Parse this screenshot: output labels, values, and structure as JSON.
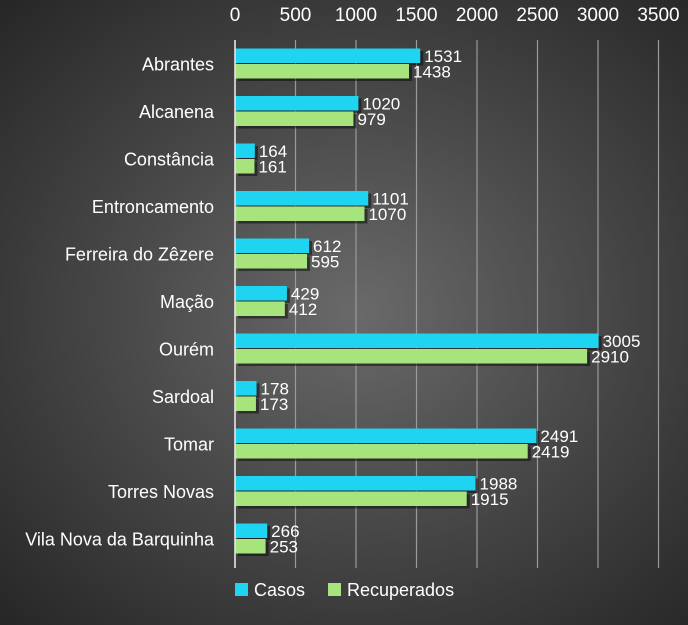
{
  "chart_data": {
    "type": "bar",
    "orientation": "horizontal",
    "categories": [
      "Abrantes",
      "Alcanena",
      "Constância",
      "Entroncamento",
      "Ferreira do Zêzere",
      "Mação",
      "Ourém",
      "Sardoal",
      "Tomar",
      "Torres Novas",
      "Vila Nova da Barquinha"
    ],
    "series": [
      {
        "name": "Casos",
        "color": "#1ed4f0",
        "values": [
          1531,
          1020,
          164,
          1101,
          612,
          429,
          3005,
          178,
          2491,
          1988,
          266
        ]
      },
      {
        "name": "Recuperados",
        "color": "#a8e47e",
        "values": [
          1438,
          979,
          161,
          1070,
          595,
          412,
          2910,
          173,
          2419,
          1915,
          253
        ]
      }
    ],
    "title": "",
    "xlabel": "",
    "ylabel": "",
    "xlim": [
      0,
      3500
    ],
    "xticks": [
      "0",
      "500",
      "1000",
      "1500",
      "2000",
      "2500",
      "3000",
      "3500"
    ],
    "x_axis_position": "top",
    "grid": true,
    "gridline_color": "#9a9a9a",
    "legend_position": "bottom",
    "data_labels": true
  }
}
